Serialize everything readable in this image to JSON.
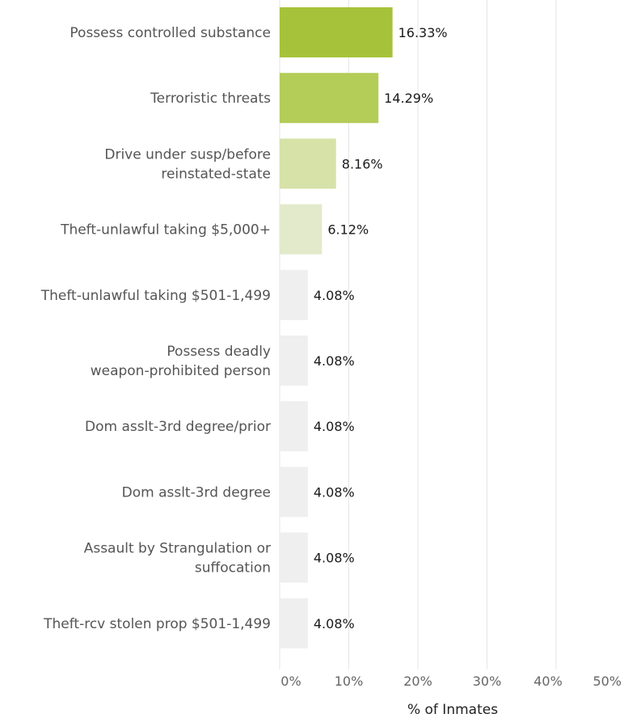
{
  "chart_data": {
    "type": "bar",
    "orientation": "horizontal",
    "categories": [
      [
        "Possess controlled substance"
      ],
      [
        "Terroristic threats"
      ],
      [
        "Drive under susp/before",
        "reinstated-state"
      ],
      [
        "Theft-unlawful taking $5,000+"
      ],
      [
        "Theft-unlawful taking $501-1,499"
      ],
      [
        "Possess deadly",
        "weapon-prohibited person"
      ],
      [
        "Dom asslt-3rd degree/prior"
      ],
      [
        "Dom asslt-3rd degree"
      ],
      [
        "Assault by Strangulation or",
        "suffocation"
      ],
      [
        "Theft-rcv stolen prop $501-1,499"
      ]
    ],
    "values": [
      16.33,
      14.29,
      8.16,
      6.12,
      4.08,
      4.08,
      4.08,
      4.08,
      4.08,
      4.08
    ],
    "value_labels": [
      "16.33%",
      "14.29%",
      "8.16%",
      "6.12%",
      "4.08%",
      "4.08%",
      "4.08%",
      "4.08%",
      "4.08%",
      "4.08%"
    ],
    "bar_colors": [
      "#a6c23a",
      "#b4cc58",
      "#d6e2a8",
      "#e3eacb",
      "#efefef",
      "#efefef",
      "#efefef",
      "#efefef",
      "#efefef",
      "#efefef"
    ],
    "xlabel": "% of Inmates",
    "xlim": [
      0,
      50
    ],
    "xticks": [
      "0%",
      "10%",
      "20%",
      "30%",
      "40%",
      "50%"
    ],
    "grid": true,
    "grid_color": "#e6e6e6"
  }
}
